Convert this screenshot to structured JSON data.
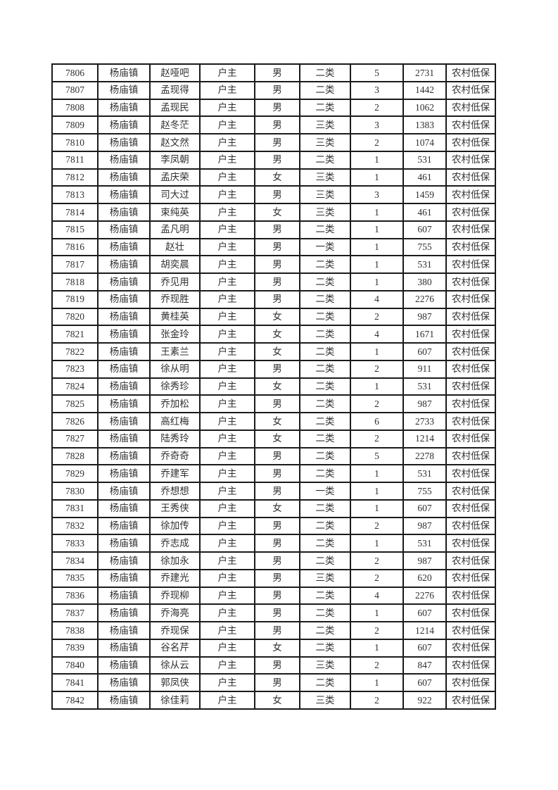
{
  "page": {
    "background_color": "#ffffff",
    "border_color": "#1b1b1b",
    "text_color": "#303030"
  },
  "table": {
    "rows": [
      [
        "7806",
        "杨庙镇",
        "赵哑吧",
        "户主",
        "男",
        "二类",
        "5",
        "2731",
        "农村低保"
      ],
      [
        "7807",
        "杨庙镇",
        "孟现得",
        "户主",
        "男",
        "二类",
        "3",
        "1442",
        "农村低保"
      ],
      [
        "7808",
        "杨庙镇",
        "孟现民",
        "户主",
        "男",
        "二类",
        "2",
        "1062",
        "农村低保"
      ],
      [
        "7809",
        "杨庙镇",
        "赵冬茫",
        "户主",
        "男",
        "三类",
        "3",
        "1383",
        "农村低保"
      ],
      [
        "7810",
        "杨庙镇",
        "赵文然",
        "户主",
        "男",
        "三类",
        "2",
        "1074",
        "农村低保"
      ],
      [
        "7811",
        "杨庙镇",
        "李凤朝",
        "户主",
        "男",
        "二类",
        "1",
        "531",
        "农村低保"
      ],
      [
        "7812",
        "杨庙镇",
        "孟庆荣",
        "户主",
        "女",
        "三类",
        "1",
        "461",
        "农村低保"
      ],
      [
        "7813",
        "杨庙镇",
        "司大过",
        "户主",
        "男",
        "三类",
        "3",
        "1459",
        "农村低保"
      ],
      [
        "7814",
        "杨庙镇",
        "束纯英",
        "户主",
        "女",
        "三类",
        "1",
        "461",
        "农村低保"
      ],
      [
        "7815",
        "杨庙镇",
        "孟凡明",
        "户主",
        "男",
        "二类",
        "1",
        "607",
        "农村低保"
      ],
      [
        "7816",
        "杨庙镇",
        "赵壮",
        "户主",
        "男",
        "一类",
        "1",
        "755",
        "农村低保"
      ],
      [
        "7817",
        "杨庙镇",
        "胡奕晨",
        "户主",
        "男",
        "二类",
        "1",
        "531",
        "农村低保"
      ],
      [
        "7818",
        "杨庙镇",
        "乔见用",
        "户主",
        "男",
        "二类",
        "1",
        "380",
        "农村低保"
      ],
      [
        "7819",
        "杨庙镇",
        "乔现胜",
        "户主",
        "男",
        "二类",
        "4",
        "2276",
        "农村低保"
      ],
      [
        "7820",
        "杨庙镇",
        "黄桂英",
        "户主",
        "女",
        "二类",
        "2",
        "987",
        "农村低保"
      ],
      [
        "7821",
        "杨庙镇",
        "张金玲",
        "户主",
        "女",
        "二类",
        "4",
        "1671",
        "农村低保"
      ],
      [
        "7822",
        "杨庙镇",
        "王素兰",
        "户主",
        "女",
        "二类",
        "1",
        "607",
        "农村低保"
      ],
      [
        "7823",
        "杨庙镇",
        "徐从明",
        "户主",
        "男",
        "二类",
        "2",
        "911",
        "农村低保"
      ],
      [
        "7824",
        "杨庙镇",
        "徐秀珍",
        "户主",
        "女",
        "二类",
        "1",
        "531",
        "农村低保"
      ],
      [
        "7825",
        "杨庙镇",
        "乔加松",
        "户主",
        "男",
        "二类",
        "2",
        "987",
        "农村低保"
      ],
      [
        "7826",
        "杨庙镇",
        "高红梅",
        "户主",
        "女",
        "二类",
        "6",
        "2733",
        "农村低保"
      ],
      [
        "7827",
        "杨庙镇",
        "陆秀玲",
        "户主",
        "女",
        "二类",
        "2",
        "1214",
        "农村低保"
      ],
      [
        "7828",
        "杨庙镇",
        "乔奇奇",
        "户主",
        "男",
        "二类",
        "5",
        "2278",
        "农村低保"
      ],
      [
        "7829",
        "杨庙镇",
        "乔建军",
        "户主",
        "男",
        "二类",
        "1",
        "531",
        "农村低保"
      ],
      [
        "7830",
        "杨庙镇",
        "乔想想",
        "户主",
        "男",
        "一类",
        "1",
        "755",
        "农村低保"
      ],
      [
        "7831",
        "杨庙镇",
        "王秀侠",
        "户主",
        "女",
        "二类",
        "1",
        "607",
        "农村低保"
      ],
      [
        "7832",
        "杨庙镇",
        "徐加传",
        "户主",
        "男",
        "二类",
        "2",
        "987",
        "农村低保"
      ],
      [
        "7833",
        "杨庙镇",
        "乔志成",
        "户主",
        "男",
        "二类",
        "1",
        "531",
        "农村低保"
      ],
      [
        "7834",
        "杨庙镇",
        "徐加永",
        "户主",
        "男",
        "二类",
        "2",
        "987",
        "农村低保"
      ],
      [
        "7835",
        "杨庙镇",
        "乔建光",
        "户主",
        "男",
        "三类",
        "2",
        "620",
        "农村低保"
      ],
      [
        "7836",
        "杨庙镇",
        "乔现柳",
        "户主",
        "男",
        "二类",
        "4",
        "2276",
        "农村低保"
      ],
      [
        "7837",
        "杨庙镇",
        "乔海亮",
        "户主",
        "男",
        "二类",
        "1",
        "607",
        "农村低保"
      ],
      [
        "7838",
        "杨庙镇",
        "乔现保",
        "户主",
        "男",
        "二类",
        "2",
        "1214",
        "农村低保"
      ],
      [
        "7839",
        "杨庙镇",
        "谷名芹",
        "户主",
        "女",
        "二类",
        "1",
        "607",
        "农村低保"
      ],
      [
        "7840",
        "杨庙镇",
        "徐从云",
        "户主",
        "男",
        "三类",
        "2",
        "847",
        "农村低保"
      ],
      [
        "7841",
        "杨庙镇",
        "郭凤侠",
        "户主",
        "男",
        "二类",
        "1",
        "607",
        "农村低保"
      ],
      [
        "7842",
        "杨庙镇",
        "徐佳莉",
        "户主",
        "女",
        "三类",
        "2",
        "922",
        "农村低保"
      ]
    ]
  }
}
